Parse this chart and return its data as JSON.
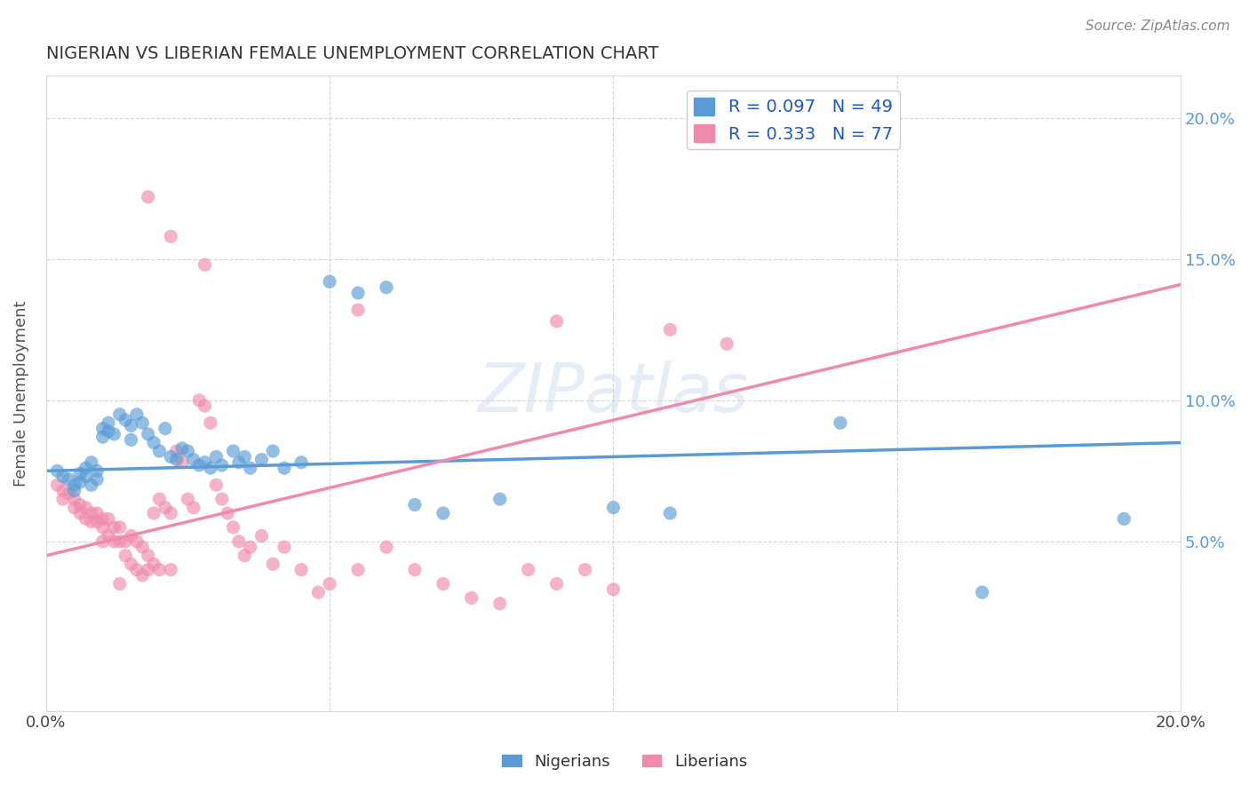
{
  "title": "NIGERIAN VS LIBERIAN FEMALE UNEMPLOYMENT CORRELATION CHART",
  "source": "Source: ZipAtlas.com",
  "ylabel": "Female Unemployment",
  "xlim": [
    0.0,
    0.2
  ],
  "ylim": [
    -0.01,
    0.215
  ],
  "blue_color": "#5b9bd5",
  "pink_color": "#f08aaa",
  "pink_light": "#f4b8ce",
  "watermark": "ZIPatlas",
  "nig_trend": [
    0.075,
    0.009
  ],
  "lib_trend": [
    0.045,
    0.485
  ],
  "nigerians": [
    [
      0.002,
      0.075
    ],
    [
      0.003,
      0.073
    ],
    [
      0.004,
      0.072
    ],
    [
      0.005,
      0.07
    ],
    [
      0.005,
      0.068
    ],
    [
      0.006,
      0.074
    ],
    [
      0.006,
      0.071
    ],
    [
      0.007,
      0.076
    ],
    [
      0.007,
      0.073
    ],
    [
      0.008,
      0.078
    ],
    [
      0.008,
      0.07
    ],
    [
      0.009,
      0.075
    ],
    [
      0.009,
      0.072
    ],
    [
      0.01,
      0.09
    ],
    [
      0.01,
      0.087
    ],
    [
      0.011,
      0.092
    ],
    [
      0.011,
      0.089
    ],
    [
      0.012,
      0.088
    ],
    [
      0.013,
      0.095
    ],
    [
      0.014,
      0.093
    ],
    [
      0.015,
      0.091
    ],
    [
      0.015,
      0.086
    ],
    [
      0.016,
      0.095
    ],
    [
      0.017,
      0.092
    ],
    [
      0.018,
      0.088
    ],
    [
      0.019,
      0.085
    ],
    [
      0.02,
      0.082
    ],
    [
      0.021,
      0.09
    ],
    [
      0.022,
      0.08
    ],
    [
      0.023,
      0.079
    ],
    [
      0.024,
      0.083
    ],
    [
      0.025,
      0.082
    ],
    [
      0.026,
      0.079
    ],
    [
      0.027,
      0.077
    ],
    [
      0.028,
      0.078
    ],
    [
      0.029,
      0.076
    ],
    [
      0.03,
      0.08
    ],
    [
      0.031,
      0.077
    ],
    [
      0.033,
      0.082
    ],
    [
      0.034,
      0.078
    ],
    [
      0.035,
      0.08
    ],
    [
      0.036,
      0.076
    ],
    [
      0.038,
      0.079
    ],
    [
      0.04,
      0.082
    ],
    [
      0.042,
      0.076
    ],
    [
      0.045,
      0.078
    ],
    [
      0.05,
      0.142
    ],
    [
      0.055,
      0.138
    ],
    [
      0.06,
      0.14
    ],
    [
      0.065,
      0.063
    ],
    [
      0.07,
      0.06
    ],
    [
      0.08,
      0.065
    ],
    [
      0.1,
      0.062
    ],
    [
      0.11,
      0.06
    ],
    [
      0.14,
      0.092
    ],
    [
      0.165,
      0.032
    ],
    [
      0.19,
      0.058
    ]
  ],
  "liberians": [
    [
      0.002,
      0.07
    ],
    [
      0.003,
      0.068
    ],
    [
      0.003,
      0.065
    ],
    [
      0.004,
      0.067
    ],
    [
      0.005,
      0.065
    ],
    [
      0.005,
      0.062
    ],
    [
      0.006,
      0.063
    ],
    [
      0.006,
      0.06
    ],
    [
      0.007,
      0.062
    ],
    [
      0.007,
      0.058
    ],
    [
      0.008,
      0.06
    ],
    [
      0.008,
      0.057
    ],
    [
      0.009,
      0.06
    ],
    [
      0.009,
      0.057
    ],
    [
      0.01,
      0.058
    ],
    [
      0.01,
      0.055
    ],
    [
      0.01,
      0.05
    ],
    [
      0.011,
      0.058
    ],
    [
      0.011,
      0.052
    ],
    [
      0.012,
      0.055
    ],
    [
      0.012,
      0.05
    ],
    [
      0.013,
      0.055
    ],
    [
      0.013,
      0.05
    ],
    [
      0.013,
      0.035
    ],
    [
      0.014,
      0.05
    ],
    [
      0.014,
      0.045
    ],
    [
      0.015,
      0.052
    ],
    [
      0.015,
      0.042
    ],
    [
      0.016,
      0.05
    ],
    [
      0.016,
      0.04
    ],
    [
      0.017,
      0.048
    ],
    [
      0.017,
      0.038
    ],
    [
      0.018,
      0.045
    ],
    [
      0.018,
      0.04
    ],
    [
      0.019,
      0.06
    ],
    [
      0.019,
      0.042
    ],
    [
      0.02,
      0.065
    ],
    [
      0.02,
      0.04
    ],
    [
      0.021,
      0.062
    ],
    [
      0.022,
      0.06
    ],
    [
      0.022,
      0.04
    ],
    [
      0.023,
      0.082
    ],
    [
      0.024,
      0.078
    ],
    [
      0.025,
      0.065
    ],
    [
      0.026,
      0.062
    ],
    [
      0.027,
      0.1
    ],
    [
      0.028,
      0.098
    ],
    [
      0.029,
      0.092
    ],
    [
      0.03,
      0.07
    ],
    [
      0.031,
      0.065
    ],
    [
      0.032,
      0.06
    ],
    [
      0.033,
      0.055
    ],
    [
      0.034,
      0.05
    ],
    [
      0.035,
      0.045
    ],
    [
      0.036,
      0.048
    ],
    [
      0.038,
      0.052
    ],
    [
      0.04,
      0.042
    ],
    [
      0.042,
      0.048
    ],
    [
      0.045,
      0.04
    ],
    [
      0.048,
      0.032
    ],
    [
      0.05,
      0.035
    ],
    [
      0.055,
      0.04
    ],
    [
      0.06,
      0.048
    ],
    [
      0.065,
      0.04
    ],
    [
      0.07,
      0.035
    ],
    [
      0.075,
      0.03
    ],
    [
      0.08,
      0.028
    ],
    [
      0.085,
      0.04
    ],
    [
      0.09,
      0.035
    ],
    [
      0.095,
      0.04
    ],
    [
      0.1,
      0.033
    ],
    [
      0.018,
      0.172
    ],
    [
      0.022,
      0.158
    ],
    [
      0.028,
      0.148
    ],
    [
      0.055,
      0.132
    ],
    [
      0.09,
      0.128
    ],
    [
      0.11,
      0.125
    ],
    [
      0.12,
      0.12
    ]
  ]
}
